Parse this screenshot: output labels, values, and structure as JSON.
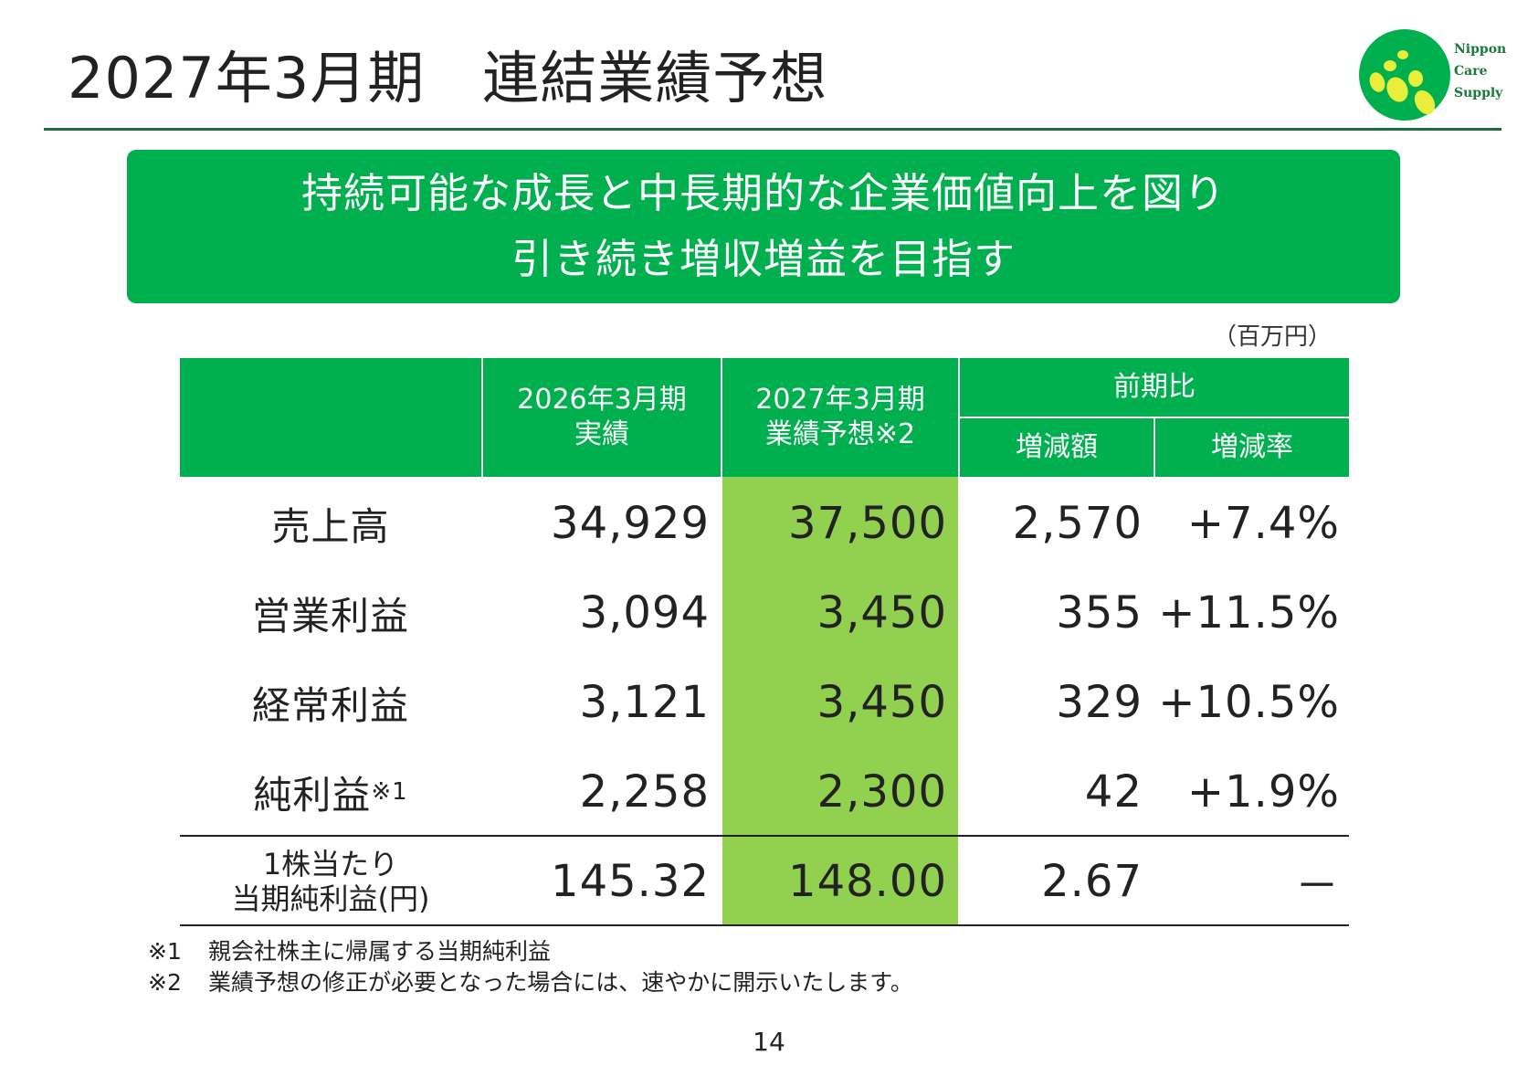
{
  "title": "2027年3月期　連結業績予想",
  "logo": {
    "line1": "Nippon",
    "line2": "Care",
    "line3": "Supply"
  },
  "banner": {
    "line1": "持続可能な成長と中長期的な企業価値向上を図り",
    "line2": "引き続き増収増益を目指す"
  },
  "unit": "（百万円）",
  "table": {
    "headers": {
      "actual_l1": "2026年3月期",
      "actual_l2": "実績",
      "forecast_l1": "2027年3月期",
      "forecast_l2": "業績予想※2",
      "compare": "前期比",
      "diff": "増減額",
      "rate": "増減率"
    },
    "rows": [
      {
        "label": "売上高",
        "note": "",
        "actual": "34,929",
        "forecast": "37,500",
        "diff": "2,570",
        "rate": "+7.4%"
      },
      {
        "label": "営業利益",
        "note": "",
        "actual": "3,094",
        "forecast": "3,450",
        "diff": "355",
        "rate": "+11.5%"
      },
      {
        "label": "経常利益",
        "note": "",
        "actual": "3,121",
        "forecast": "3,450",
        "diff": "329",
        "rate": "+10.5%"
      },
      {
        "label": "純利益",
        "note": "※1",
        "actual": "2,258",
        "forecast": "2,300",
        "diff": "42",
        "rate": "+1.9%"
      }
    ],
    "eps": {
      "label_l1": "1株当たり",
      "label_l2": "当期純利益(円)",
      "actual": "145.32",
      "forecast": "148.00",
      "diff": "2.67",
      "rate": "－"
    }
  },
  "footnotes": [
    {
      "mark": "※1",
      "text": "親会社株主に帰属する当期純利益"
    },
    {
      "mark": "※2",
      "text": "業績予想の修正が必要となった場合には、速やかに開示いたします。"
    }
  ],
  "page_number": "14",
  "colors": {
    "green": "#00b04f",
    "highlight": "#92d050",
    "rule": "#1a6e3c"
  }
}
